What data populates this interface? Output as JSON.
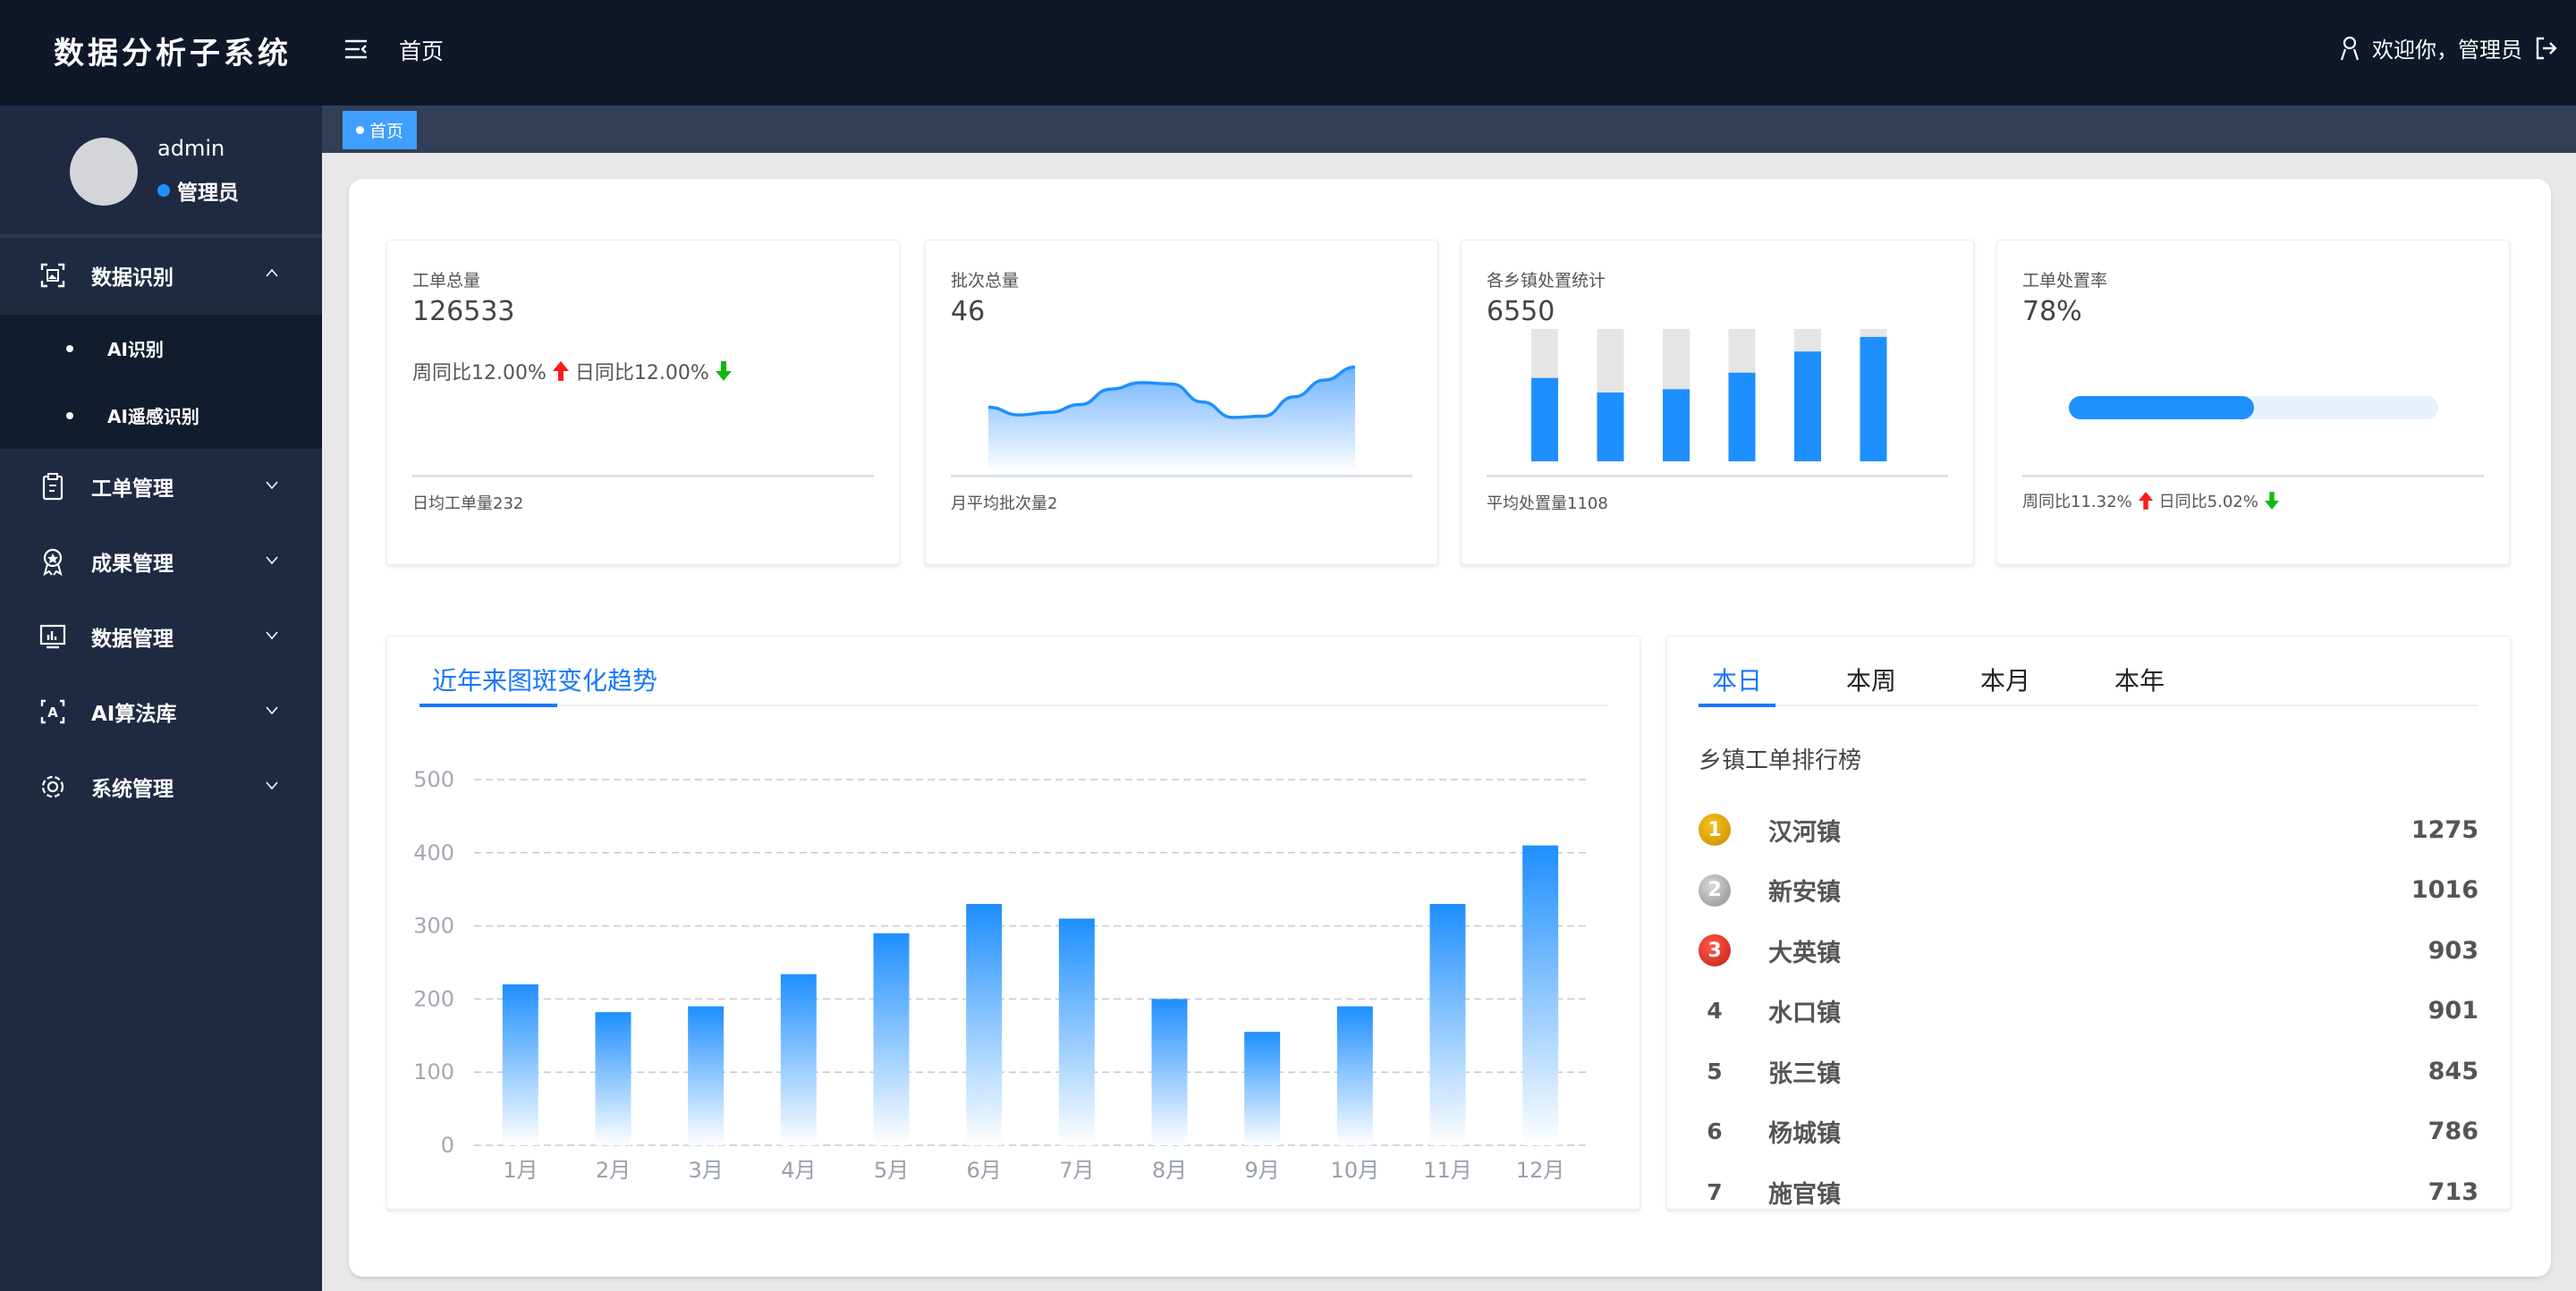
{
  "header": {
    "app_title": "数据分析子系统",
    "nav_home": "首页",
    "welcome": "欢迎你，管理员",
    "icons": [
      "menu-fold-icon",
      "user-icon",
      "logout-icon"
    ]
  },
  "sidebar": {
    "username": "admin",
    "role": "管理员",
    "menu": [
      {
        "label": "数据识别",
        "icon": "scan-image-icon",
        "expanded": true,
        "children": [
          {
            "label": "AI识别"
          },
          {
            "label": "AI遥感识别"
          }
        ]
      },
      {
        "label": "工单管理",
        "icon": "clipboard-icon"
      },
      {
        "label": "成果管理",
        "icon": "award-icon"
      },
      {
        "label": "数据管理",
        "icon": "monitor-chart-icon"
      },
      {
        "label": "AI算法库",
        "icon": "text-scan-icon"
      },
      {
        "label": "系统管理",
        "icon": "gear-icon"
      }
    ]
  },
  "tags": {
    "home": "首页"
  },
  "stats": [
    {
      "title": "工单总量",
      "value": "126533",
      "week_label": "周同比12.00%",
      "day_label": "日同比12.00%",
      "footer": "日均工单量232"
    },
    {
      "title": "批次总量",
      "value": "46",
      "footer": "月平均批次量2"
    },
    {
      "title": "各乡镇处置统计",
      "value": "6550",
      "footer": "平均处置量1108"
    },
    {
      "title": "工单处置率",
      "value": "78%",
      "progress_fill_percent": 50,
      "week_label": "周同比11.32%",
      "day_label": "日同比5.02%",
      "footer": ""
    }
  ],
  "colors": {
    "accent": "#1e90ff",
    "up": "#ff1a1a",
    "down": "#11b911",
    "header": "#0f1729",
    "sidebar": "#1f2a42"
  },
  "chart_data": [
    {
      "type": "area",
      "values": [
        44,
        38,
        40,
        46,
        58,
        63,
        62,
        48,
        36,
        37,
        52,
        65,
        75
      ]
    },
    {
      "type": "bar",
      "stacked_fill_fraction": [
        0.63,
        0.52,
        0.545,
        0.67,
        0.83,
        0.94
      ]
    },
    {
      "type": "bar",
      "title": "近年来图斑变化趋势",
      "categories": [
        "1月",
        "2月",
        "3月",
        "4月",
        "5月",
        "6月",
        "7月",
        "8月",
        "9月",
        "10月",
        "11月",
        "12月"
      ],
      "values": [
        220,
        182,
        190,
        234,
        290,
        330,
        310,
        200,
        155,
        190,
        330,
        410
      ],
      "ylim": [
        0,
        500
      ],
      "yticks": [
        "0",
        "100",
        "200",
        "300",
        "400",
        "500"
      ],
      "grid": true
    }
  ],
  "ranking": {
    "tabs": [
      "本日",
      "本周",
      "本月",
      "本年"
    ],
    "active_tab": 0,
    "title": "乡镇工单排行榜",
    "rows": [
      {
        "rank": "1",
        "name": "汉河镇",
        "value": "1275"
      },
      {
        "rank": "2",
        "name": "新安镇",
        "value": "1016"
      },
      {
        "rank": "3",
        "name": "大英镇",
        "value": "903"
      },
      {
        "rank": "4",
        "name": "水口镇",
        "value": "901"
      },
      {
        "rank": "5",
        "name": "张三镇",
        "value": "845"
      },
      {
        "rank": "6",
        "name": "杨城镇",
        "value": "786"
      },
      {
        "rank": "7",
        "name": "施官镇",
        "value": "713"
      }
    ]
  }
}
